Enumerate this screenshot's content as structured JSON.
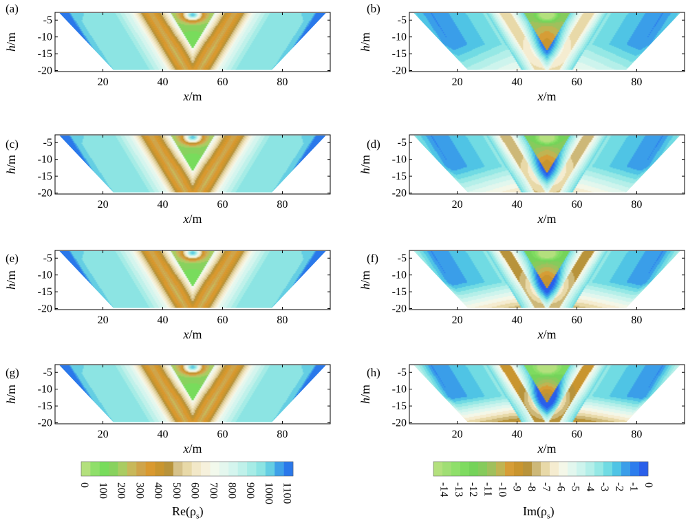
{
  "chart_data": [
    {
      "type": "heatmap",
      "panel_label": "(a)",
      "quantity": "re",
      "variant": 0,
      "x_ticks": [
        "20",
        "40",
        "60",
        "80"
      ],
      "y_ticks": [
        "-5",
        "-10",
        "-15",
        "-20"
      ],
      "xlabel_italic": "x",
      "xlabel_rest": "/m",
      "ylabel_italic": "h",
      "ylabel_rest": "/m",
      "xlim": [
        4,
        96
      ],
      "ylim": [
        -20.3,
        -2.7
      ]
    },
    {
      "type": "heatmap",
      "panel_label": "(b)",
      "quantity": "im",
      "variant": 0,
      "x_ticks": [
        "20",
        "40",
        "60",
        "80"
      ],
      "y_ticks": [
        "-5",
        "-10",
        "-15",
        "-20"
      ],
      "xlabel_italic": "x",
      "xlabel_rest": "/m",
      "ylabel_italic": "h",
      "ylabel_rest": "/m",
      "xlim": [
        4,
        96
      ],
      "ylim": [
        -20.3,
        -2.7
      ]
    },
    {
      "type": "heatmap",
      "panel_label": "(c)",
      "quantity": "re",
      "variant": 1,
      "x_ticks": [
        "20",
        "40",
        "60",
        "80"
      ],
      "y_ticks": [
        "-5",
        "-10",
        "-15",
        "-20"
      ],
      "xlabel_italic": "x",
      "xlabel_rest": "/m",
      "ylabel_italic": "h",
      "ylabel_rest": "/m",
      "xlim": [
        4,
        96
      ],
      "ylim": [
        -20.3,
        -2.7
      ]
    },
    {
      "type": "heatmap",
      "panel_label": "(d)",
      "quantity": "im",
      "variant": 1,
      "x_ticks": [
        "20",
        "40",
        "60",
        "80"
      ],
      "y_ticks": [
        "-5",
        "-10",
        "-15",
        "-20"
      ],
      "xlabel_italic": "x",
      "xlabel_rest": "/m",
      "ylabel_italic": "h",
      "ylabel_rest": "/m",
      "xlim": [
        4,
        96
      ],
      "ylim": [
        -20.3,
        -2.7
      ]
    },
    {
      "type": "heatmap",
      "panel_label": "(e)",
      "quantity": "re",
      "variant": 2,
      "x_ticks": [
        "20",
        "40",
        "60",
        "80"
      ],
      "y_ticks": [
        "-5",
        "-10",
        "-15",
        "-20"
      ],
      "xlabel_italic": "x",
      "xlabel_rest": "/m",
      "ylabel_italic": "h",
      "ylabel_rest": "/m",
      "xlim": [
        4,
        96
      ],
      "ylim": [
        -20.3,
        -2.7
      ]
    },
    {
      "type": "heatmap",
      "panel_label": "(f)",
      "quantity": "im",
      "variant": 2,
      "x_ticks": [
        "20",
        "40",
        "60",
        "80"
      ],
      "y_ticks": [
        "-5",
        "-10",
        "-15",
        "-20"
      ],
      "xlabel_italic": "x",
      "xlabel_rest": "/m",
      "ylabel_italic": "h",
      "ylabel_rest": "/m",
      "xlim": [
        4,
        96
      ],
      "ylim": [
        -20.3,
        -2.7
      ]
    },
    {
      "type": "heatmap",
      "panel_label": "(g)",
      "quantity": "re",
      "variant": 3,
      "x_ticks": [
        "20",
        "40",
        "60",
        "80"
      ],
      "y_ticks": [
        "-5",
        "-10",
        "-15",
        "-20"
      ],
      "xlabel_italic": "x",
      "xlabel_rest": "/m",
      "ylabel_italic": "h",
      "ylabel_rest": "/m",
      "xlim": [
        4,
        96
      ],
      "ylim": [
        -20.3,
        -2.7
      ]
    },
    {
      "type": "heatmap",
      "panel_label": "(h)",
      "quantity": "im",
      "variant": 3,
      "x_ticks": [
        "20",
        "40",
        "60",
        "80"
      ],
      "y_ticks": [
        "-5",
        "-10",
        "-15",
        "-20"
      ],
      "xlabel_italic": "x",
      "xlabel_rest": "/m",
      "ylabel_italic": "h",
      "ylabel_rest": "/m",
      "xlim": [
        4,
        96
      ],
      "ylim": [
        -20.3,
        -2.7
      ]
    }
  ],
  "colorbars": {
    "re": {
      "title": "Re(ρs)",
      "title_main": "Re(ρ",
      "title_sub": "s",
      "title_close": ")",
      "tick_labels": [
        "0",
        "100",
        "200",
        "300",
        "400",
        "500",
        "600",
        "700",
        "800",
        "900",
        "1000",
        "1100"
      ],
      "range": [
        0,
        1150
      ],
      "colors": [
        "#b3e07d",
        "#8fdf6a",
        "#78dc5c",
        "#88d25e",
        "#aacc62",
        "#c8b85a",
        "#cfa44a",
        "#d9992f",
        "#c9952e",
        "#b8933a",
        "#d6c28a",
        "#e8d9a8",
        "#f2e8c8",
        "#f6f1dc",
        "#f2f9ec",
        "#e4f7ee",
        "#d4f5ee",
        "#bff1ea",
        "#a6ece6",
        "#8ce4e3",
        "#64cee3",
        "#3ea0e8",
        "#2a78ea"
      ]
    },
    "im": {
      "title": "Im(ρs)",
      "title_main": "Im(ρ",
      "title_sub": "s",
      "title_close": ")",
      "tick_labels": [
        "-14",
        "-13",
        "-12",
        "-11",
        "-10",
        "-9",
        "-8",
        "-7",
        "-6",
        "-5",
        "-4",
        "-3",
        "-2",
        "-1",
        "0"
      ],
      "range": [
        -14.5,
        0.2
      ],
      "colors": [
        "#b3e07d",
        "#a0de74",
        "#8fdf6a",
        "#7edb60",
        "#75d35a",
        "#86cb5c",
        "#a0c05c",
        "#c0b452",
        "#d69d36",
        "#c9952e",
        "#b8933a",
        "#cdb878",
        "#e8d9a8",
        "#f5ecd0",
        "#f4f7e8",
        "#e2f7ee",
        "#cdf4ed",
        "#b4efe9",
        "#95e8e5",
        "#70dbe3",
        "#4fc4e5",
        "#3a9ee9",
        "#2d7ded",
        "#2a5fea"
      ]
    }
  }
}
